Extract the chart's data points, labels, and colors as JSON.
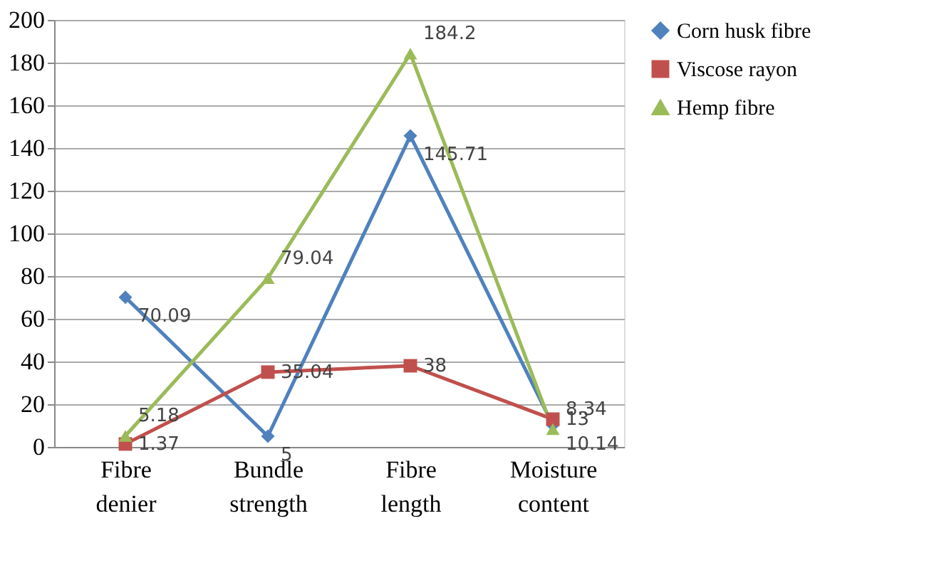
{
  "chart_data": {
    "type": "line",
    "categories": [
      "Fibre denier",
      "Bundle strength",
      "Fibre length",
      "Moisture content"
    ],
    "series": [
      {
        "name": "Corn husk fibre",
        "color": "#4f81bd",
        "marker": "diamond",
        "values": [
          70.09,
          5,
          145.71,
          10.14
        ]
      },
      {
        "name": "Viscose rayon",
        "color": "#c0504d",
        "marker": "square",
        "values": [
          1.37,
          35.04,
          38,
          13
        ]
      },
      {
        "name": "Hemp fibre",
        "color": "#9bbb59",
        "marker": "triangle",
        "values": [
          5.18,
          79.04,
          184.2,
          8.34
        ]
      }
    ],
    "ylim": [
      0,
      200
    ],
    "yticks": [
      0,
      20,
      40,
      60,
      80,
      100,
      120,
      140,
      160,
      180,
      200
    ],
    "grid": "y",
    "legend": "right",
    "data_labels": true
  }
}
